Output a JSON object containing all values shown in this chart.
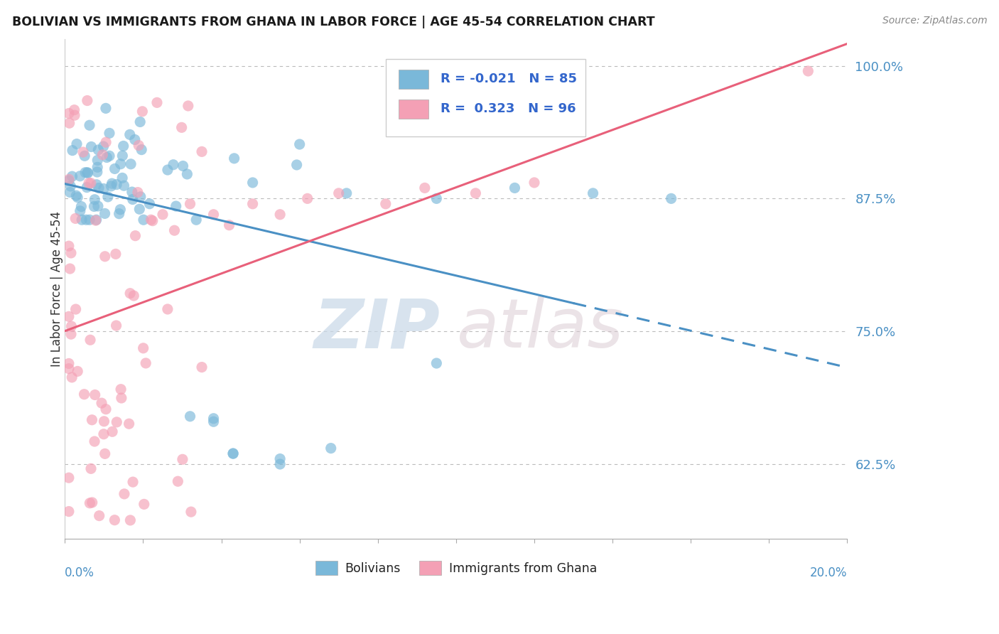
{
  "title": "BOLIVIAN VS IMMIGRANTS FROM GHANA IN LABOR FORCE | AGE 45-54 CORRELATION CHART",
  "source": "Source: ZipAtlas.com",
  "ylabel": "In Labor Force | Age 45-54",
  "x_min": 0.0,
  "x_max": 0.2,
  "y_min": 0.555,
  "y_max": 1.025,
  "blue_R": -0.021,
  "blue_N": 85,
  "pink_R": 0.323,
  "pink_N": 96,
  "blue_color": "#7ab8d9",
  "pink_color": "#f4a0b5",
  "blue_line_color": "#4a90c4",
  "pink_line_color": "#e8607a",
  "legend_label_blue": "Bolivians",
  "legend_label_pink": "Immigrants from Ghana",
  "watermark_zip": "ZIP",
  "watermark_atlas": "atlas",
  "background_color": "#ffffff",
  "y_ticks": [
    0.625,
    0.75,
    0.875,
    1.0
  ],
  "y_tick_labels": [
    "62.5%",
    "75.0%",
    "87.5%",
    "100.0%"
  ]
}
